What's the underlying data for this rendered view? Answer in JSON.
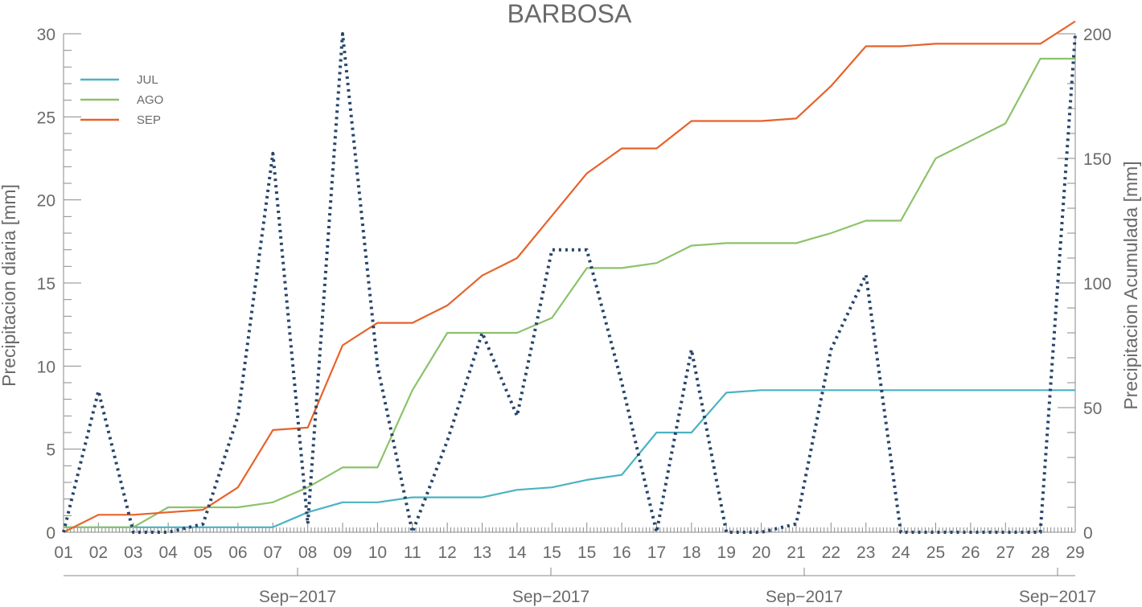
{
  "chart_data": {
    "type": "line",
    "title": "BARBOSA",
    "ylabel_left": "Precipitacion diaria [mm]",
    "ylabel_right": "Precipitacion Acumulada [mm]",
    "ylim_left": [
      0,
      30
    ],
    "ylim_right": [
      0,
      200
    ],
    "yticks_left": [
      "0",
      "5",
      "10",
      "15",
      "20",
      "25",
      "30"
    ],
    "yticks_right": [
      "0",
      "50",
      "100",
      "150",
      "200"
    ],
    "categories": [
      "01",
      "02",
      "03",
      "04",
      "05",
      "06",
      "07",
      "08",
      "09",
      "10",
      "11",
      "12",
      "13",
      "14",
      "15",
      "15",
      "16",
      "17",
      "18",
      "19",
      "20",
      "21",
      "22",
      "23",
      "24",
      "25",
      "26",
      "27",
      "28",
      "29"
    ],
    "date_labels": [
      "Sep−2017",
      "Sep−2017",
      "Sep−2017",
      "Sep−2017"
    ],
    "legend_position": "top-left",
    "grid": false,
    "series": [
      {
        "name": "JUL",
        "axis": "right",
        "color": "#4ab3c2",
        "style": "solid",
        "values": [
          2,
          2,
          2,
          2,
          2,
          2,
          2,
          8,
          12,
          12,
          14,
          14,
          14,
          17,
          18,
          21,
          23,
          40,
          40,
          56,
          57,
          57,
          57,
          57,
          57,
          57,
          57,
          57,
          57,
          57
        ]
      },
      {
        "name": "AGO",
        "axis": "right",
        "color": "#8cc26b",
        "style": "solid",
        "values": [
          2,
          2,
          2,
          10,
          10,
          10,
          12,
          18,
          26,
          26,
          57,
          80,
          80,
          80,
          86,
          106,
          106,
          108,
          115,
          116,
          116,
          116,
          120,
          125,
          125,
          150,
          157,
          164,
          190,
          190
        ]
      },
      {
        "name": "SEP",
        "axis": "right",
        "color": "#e8622a",
        "style": "solid",
        "values": [
          0,
          7,
          7,
          8,
          9,
          18,
          41,
          42,
          75,
          84,
          84,
          91,
          103,
          110,
          127,
          144,
          154,
          154,
          165,
          165,
          165,
          166,
          179,
          195,
          195,
          196,
          196,
          196,
          196,
          205
        ]
      },
      {
        "name": "",
        "axis": "left",
        "color": "#27456b",
        "style": "dotted",
        "values": [
          0,
          8.5,
          0,
          0,
          0.5,
          7,
          22.8,
          0.5,
          30,
          10,
          0,
          5.5,
          12,
          7,
          17,
          17,
          9,
          0,
          11,
          0,
          0,
          0.5,
          11,
          15.5,
          0,
          0,
          0,
          0,
          0,
          30
        ]
      }
    ]
  }
}
